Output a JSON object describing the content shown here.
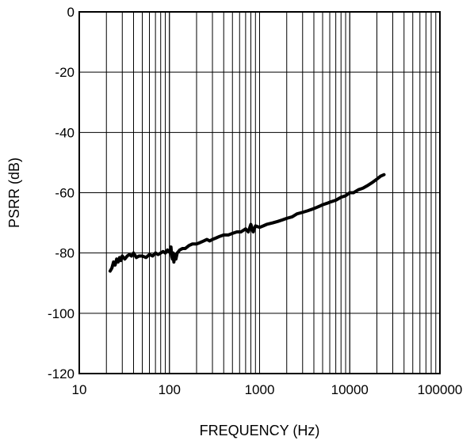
{
  "chart_data": {
    "type": "line",
    "title": "",
    "xlabel": "FREQUENCY (Hz)",
    "ylabel": "PSRR (dB)",
    "xscale": "log",
    "xlim": [
      10,
      100000
    ],
    "ylim": [
      -120,
      0
    ],
    "grid": true,
    "legend": "none",
    "x_ticks": [
      10,
      100,
      1000,
      10000,
      100000
    ],
    "x_tick_labels": [
      "10",
      "100",
      "1000",
      "10000",
      "100000"
    ],
    "y_ticks": [
      0,
      -20,
      -40,
      -60,
      -80,
      -100,
      -120
    ],
    "y_tick_labels": [
      "0",
      "-20",
      "-40",
      "-60",
      "-80",
      "-100",
      "-120"
    ],
    "series": [
      {
        "color": "#000000",
        "x": [
          22,
          23,
          24,
          25,
          26,
          27,
          28,
          29,
          30,
          32,
          34,
          36,
          38,
          40,
          43,
          46,
          50,
          55,
          60,
          65,
          70,
          75,
          80,
          85,
          90,
          95,
          100,
          102,
          104,
          106,
          108,
          110,
          112,
          115,
          118,
          122,
          126,
          130,
          140,
          150,
          165,
          180,
          200,
          220,
          240,
          260,
          280,
          300,
          330,
          360,
          400,
          450,
          500,
          560,
          620,
          700,
          750,
          800,
          850,
          900,
          1000,
          1100,
          1200,
          1400,
          1600,
          1800,
          2000,
          2300,
          2600,
          3000,
          3400,
          3800,
          4200,
          4600,
          5000,
          5600,
          6200,
          7000,
          8000,
          9000,
          10000,
          11000,
          12500,
          14000,
          16000,
          18000,
          20000,
          22000,
          24000
        ],
        "y": [
          -86,
          -85,
          -83,
          -84,
          -82,
          -83,
          -81.5,
          -82.5,
          -81,
          -82,
          -81,
          -80.5,
          -81,
          -80,
          -81.5,
          -81,
          -81,
          -81.5,
          -80.5,
          -81,
          -80,
          -80.5,
          -80,
          -79.5,
          -80,
          -79,
          -79.5,
          -80,
          -78,
          -81,
          -82,
          -80,
          -83,
          -80.5,
          -82,
          -80,
          -79.5,
          -79,
          -78.5,
          -78.5,
          -77.5,
          -77,
          -77,
          -76.5,
          -76,
          -75.5,
          -76,
          -75.5,
          -75,
          -74.5,
          -74,
          -74,
          -73.5,
          -73,
          -73,
          -72,
          -73,
          -70.5,
          -73,
          -71,
          -71.5,
          -71,
          -70.5,
          -70,
          -69.5,
          -69,
          -68.5,
          -68,
          -67,
          -66.5,
          -66,
          -65.5,
          -65,
          -64.5,
          -64,
          -63.5,
          -63,
          -62.5,
          -61.5,
          -61,
          -60,
          -60,
          -59,
          -58.5,
          -57.5,
          -56.5,
          -55.5,
          -54.5,
          -54
        ]
      }
    ]
  }
}
